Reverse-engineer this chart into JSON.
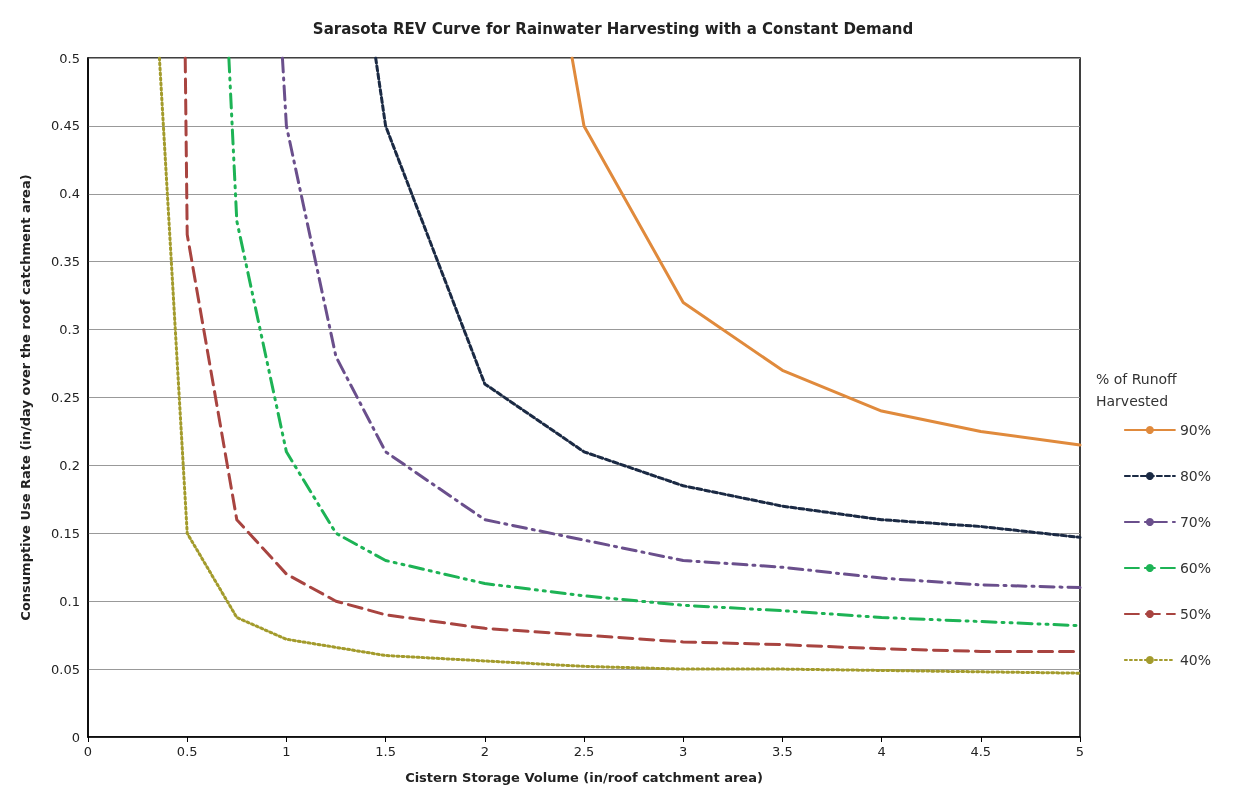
{
  "chart_data": {
    "type": "line",
    "title": "Sarasota REV Curve for Rainwater Harvesting with a Constant Demand",
    "xlabel": "Cistern Storage Volume (in/roof catchment area)",
    "ylabel": "Consumptive Use Rate (in/day over the roof catchment area)",
    "legend_title": "% of Runoff Harvested",
    "legend": "right",
    "grid": "y",
    "marker": "none",
    "xlim": [
      0,
      5
    ],
    "ylim": [
      0,
      0.5
    ],
    "xticks": [
      0,
      0.5,
      1,
      1.5,
      2,
      2.5,
      3,
      3.5,
      4,
      4.5,
      5
    ],
    "yticks": [
      0,
      0.05,
      0.1,
      0.15,
      0.2,
      0.25,
      0.3,
      0.35,
      0.4,
      0.45,
      0.5
    ],
    "series": [
      {
        "name": "90%",
        "color": "#e08a3c",
        "line_style": "solid",
        "x": [
          2.44,
          2.5,
          3,
          3.5,
          4,
          4.5,
          5
        ],
        "values": [
          0.5,
          0.45,
          0.32,
          0.27,
          0.24,
          0.225,
          0.215
        ]
      },
      {
        "name": "80%",
        "color": "#1b2a44",
        "line_style": "dashed",
        "x": [
          1.45,
          1.5,
          2,
          2.5,
          3,
          3.5,
          4,
          4.5,
          5
        ],
        "values": [
          0.5,
          0.45,
          0.26,
          0.21,
          0.185,
          0.17,
          0.16,
          0.155,
          0.147
        ]
      },
      {
        "name": "70%",
        "color": "#6a4f8c",
        "line_style": "dashdot",
        "x": [
          0.98,
          1,
          1.25,
          1.5,
          2,
          2.5,
          3,
          3.5,
          4,
          4.5,
          5
        ],
        "values": [
          0.5,
          0.45,
          0.28,
          0.21,
          0.16,
          0.145,
          0.13,
          0.125,
          0.117,
          0.112,
          0.11
        ]
      },
      {
        "name": "60%",
        "color": "#1db355",
        "line_style": "dashdotdot",
        "x": [
          0.71,
          0.75,
          1,
          1.25,
          1.5,
          2,
          2.5,
          3,
          3.5,
          4,
          4.5,
          5
        ],
        "values": [
          0.5,
          0.38,
          0.21,
          0.15,
          0.13,
          0.113,
          0.104,
          0.097,
          0.093,
          0.088,
          0.085,
          0.082
        ]
      },
      {
        "name": "50%",
        "color": "#a84440",
        "line_style": "longdash",
        "x": [
          0.49,
          0.5,
          0.75,
          1,
          1.25,
          1.5,
          2,
          2.5,
          3,
          3.5,
          4,
          4.5,
          5
        ],
        "values": [
          0.5,
          0.37,
          0.16,
          0.12,
          0.1,
          0.09,
          0.08,
          0.075,
          0.07,
          0.068,
          0.065,
          0.063,
          0.063
        ]
      },
      {
        "name": "40%",
        "color": "#a39b2c",
        "line_style": "dotted",
        "x": [
          0.36,
          0.5,
          0.75,
          1,
          1.5,
          2,
          2.5,
          3,
          3.5,
          4,
          4.5,
          5
        ],
        "values": [
          0.5,
          0.15,
          0.088,
          0.072,
          0.06,
          0.056,
          0.052,
          0.05,
          0.05,
          0.049,
          0.048,
          0.047
        ]
      }
    ]
  }
}
